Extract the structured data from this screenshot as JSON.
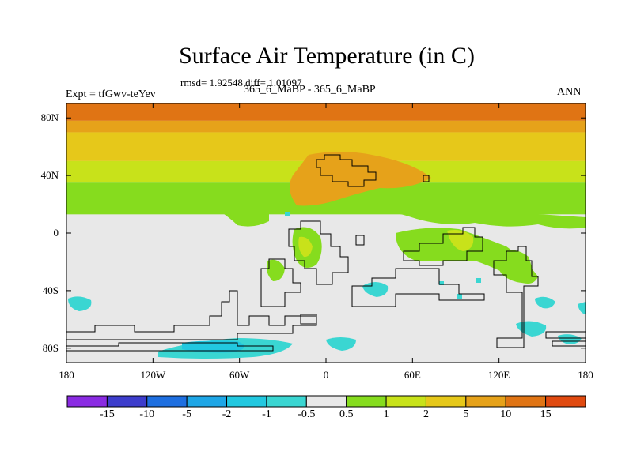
{
  "figure": {
    "title": "Surface Air Temperature (in C)",
    "stats": "rmsd= 1.92548 diff= 1.01097",
    "subtitle": "365_6_MaBP - 365_6_MaBP",
    "left_label": "Expt = tfGwv-teYev",
    "right_label": "ANN"
  },
  "map": {
    "lat_ticks": [
      "80N",
      "40N",
      "0",
      "40S",
      "80S"
    ],
    "lat_values": [
      80,
      40,
      0,
      -40,
      -80
    ],
    "lon_ticks": [
      "180",
      "120W",
      "60W",
      "0",
      "60E",
      "120E",
      "180"
    ],
    "lon_values": [
      -180,
      -120,
      -60,
      0,
      60,
      120,
      180
    ],
    "lat_range": [
      -90,
      90
    ],
    "lon_range": [
      -180,
      180
    ]
  },
  "colorbar": {
    "labels": [
      "-15",
      "-10",
      "-5",
      "-2",
      "-1",
      "-0.5",
      "0.5",
      "1",
      "2",
      "5",
      "10",
      "15"
    ],
    "colors": [
      "#8a2be2",
      "#3d3dcc",
      "#1e6fe0",
      "#1ea6e6",
      "#22c8e0",
      "#3ad6d2",
      "#e8e8e8",
      "#86dc1e",
      "#c8e21a",
      "#e6c81a",
      "#e6a21a",
      "#e07414",
      "#e04a10"
    ]
  },
  "bands": [
    {
      "lat_top": 90,
      "lat_bottom": 78,
      "color": "#e07414"
    },
    {
      "lat_top": 78,
      "lat_bottom": 70,
      "color": "#e6a21a"
    },
    {
      "lat_top": 70,
      "lat_bottom": 50,
      "color": "#e6c81a"
    },
    {
      "lat_top": 50,
      "lat_bottom": 35,
      "color": "#c8e21a"
    },
    {
      "lat_top": 35,
      "lat_bottom": 13,
      "color": "#86dc1e"
    }
  ]
}
